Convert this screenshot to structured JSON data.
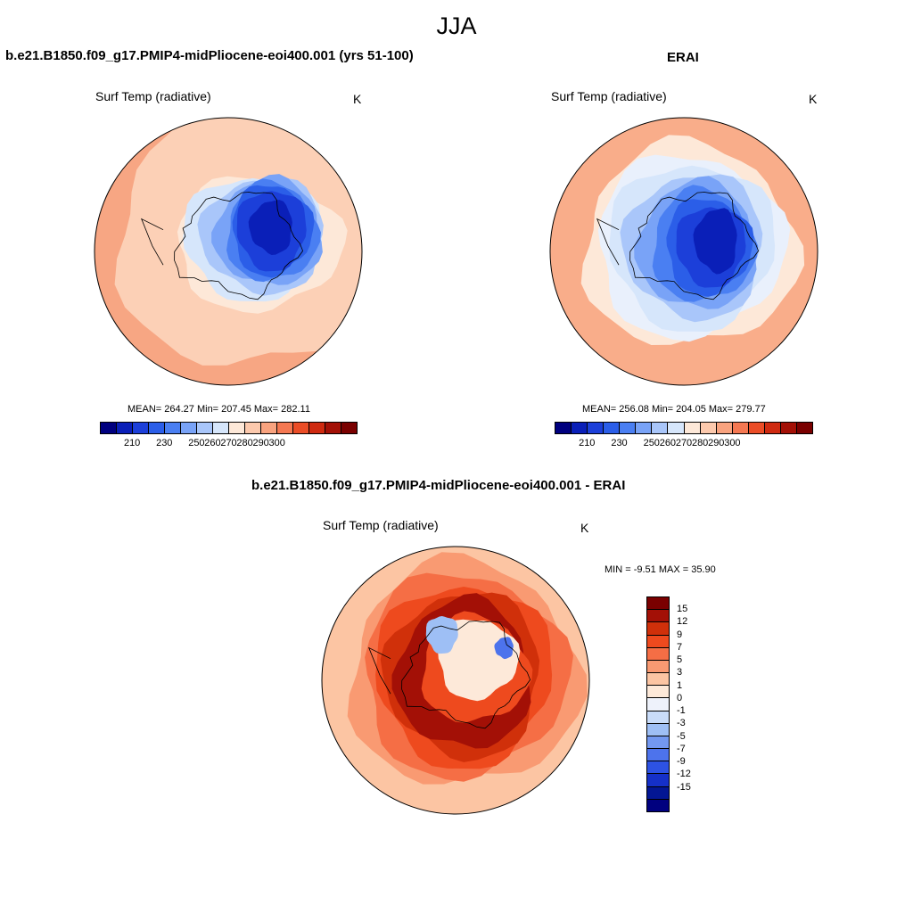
{
  "figure": {
    "title": "JJA"
  },
  "panel_model": {
    "title": "b.e21.B1850.f09_g17.PMIP4-midPliocene-eoi400.001 (yrs 51-100)",
    "variable": "Surf Temp (radiative)",
    "units": "K",
    "stats": "MEAN= 264.27  Min= 207.45  Max= 282.11"
  },
  "panel_obs": {
    "title": "ERAI",
    "variable": "Surf Temp (radiative)",
    "units": "K",
    "stats": "MEAN= 256.08  Min= 204.05  Max= 279.77"
  },
  "panel_diff": {
    "title": "b.e21.B1850.f09_g17.PMIP4-midPliocene-eoi400.001 - ERAI",
    "variable": "Surf Temp (radiative)",
    "units": "K",
    "stats": "MIN =  -9.51 MAX =  35.90"
  },
  "colorbar_abs": {
    "colors": [
      "#00007f",
      "#0a1fb8",
      "#1c3fd9",
      "#2b5ee8",
      "#4a7ff2",
      "#79a3f7",
      "#a9c6fa",
      "#d6e6fb",
      "#fde8d8",
      "#fcc9ad",
      "#f9a37f",
      "#f57852",
      "#eb4d27",
      "#cf2a10",
      "#a31006",
      "#7a0000"
    ],
    "ticks": [
      "210",
      "230",
      "250",
      "260",
      "270",
      "280",
      "290",
      "300"
    ]
  },
  "colorbar_diff": {
    "colors": [
      "#7a0000",
      "#a31006",
      "#d0300a",
      "#ee4a1e",
      "#f56e45",
      "#f99a72",
      "#fcc5a3",
      "#fde9d9",
      "#eef2fb",
      "#c9dcf9",
      "#9ebff5",
      "#7398f0",
      "#4d73ec",
      "#2d52e3",
      "#1530c8",
      "#031694",
      "#00007f"
    ],
    "ticks": [
      "15",
      "12",
      "9",
      "7",
      "5",
      "3",
      "1",
      "0",
      "-1",
      "-3",
      "-5",
      "-7",
      "-9",
      "-12",
      "-15"
    ]
  },
  "maps": {
    "model": {
      "ocean": "#f7a683",
      "bands": [
        {
          "color": "#fcd0b6"
        },
        {
          "color": "#fde8d8"
        },
        {
          "color": "#d6e6fb"
        },
        {
          "color": "#a9c6fa"
        },
        {
          "color": "#79a3f7"
        },
        {
          "color": "#4a7ff2"
        },
        {
          "color": "#2b5ee8"
        },
        {
          "color": "#1c3fd9"
        },
        {
          "color": "#0a1fb8"
        }
      ]
    },
    "obs": {
      "ocean": "#f9ad8a",
      "bands": [
        {
          "color": "#fde8d8"
        },
        {
          "color": "#e9f0fc"
        },
        {
          "color": "#d6e6fb"
        },
        {
          "color": "#a9c6fa"
        },
        {
          "color": "#79a3f7"
        },
        {
          "color": "#4a7ff2"
        },
        {
          "color": "#2b5ee8"
        },
        {
          "color": "#1c3fd9"
        },
        {
          "color": "#0a1fb8"
        }
      ]
    },
    "diff": {
      "ocean": "#fcc5a3",
      "bands": [
        {
          "color": "#f99a72"
        },
        {
          "color": "#f56e45"
        },
        {
          "color": "#ee4a1e"
        },
        {
          "color": "#d0300a"
        },
        {
          "color": "#a31006"
        },
        {
          "color": "#ee4a1e"
        },
        {
          "color": "#fde9d9"
        },
        {
          "color": "#9ebff5"
        },
        {
          "color": "#4d73ec"
        }
      ]
    }
  }
}
